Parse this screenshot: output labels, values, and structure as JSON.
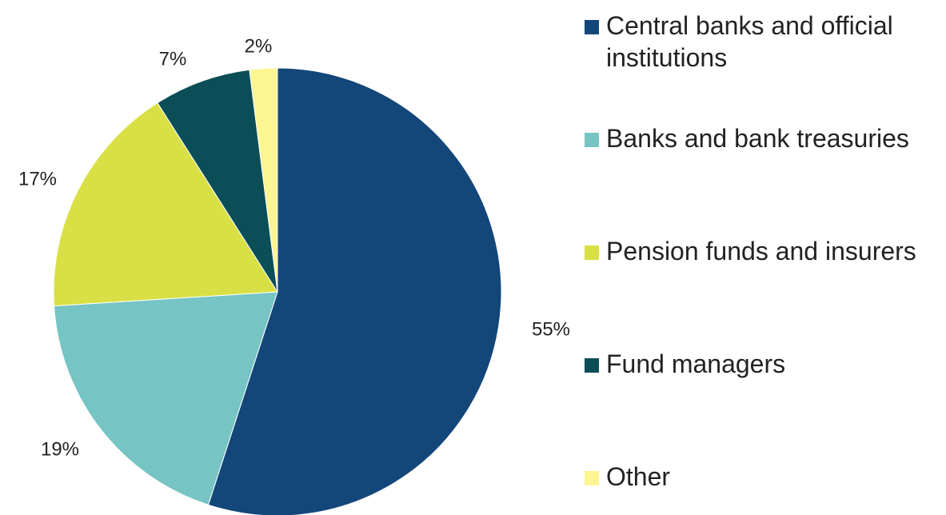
{
  "chart_data": {
    "type": "pie",
    "title": "",
    "start_angle_deg": 0,
    "direction": "clockwise",
    "legend_position": "right",
    "slices": [
      {
        "label": "Central banks and official institutions",
        "value": 55,
        "value_label": "55%",
        "color": "#134679"
      },
      {
        "label": "Banks and bank treasuries",
        "value": 19,
        "value_label": "19%",
        "color": "#76C4C3"
      },
      {
        "label": "Pension funds and insurers",
        "value": 17,
        "value_label": "17%",
        "color": "#D8E045"
      },
      {
        "label": "Fund managers",
        "value": 7,
        "value_label": "7%",
        "color": "#0B4E57"
      },
      {
        "label": "Other",
        "value": 2,
        "value_label": "2%",
        "color": "#FDF592"
      }
    ]
  }
}
